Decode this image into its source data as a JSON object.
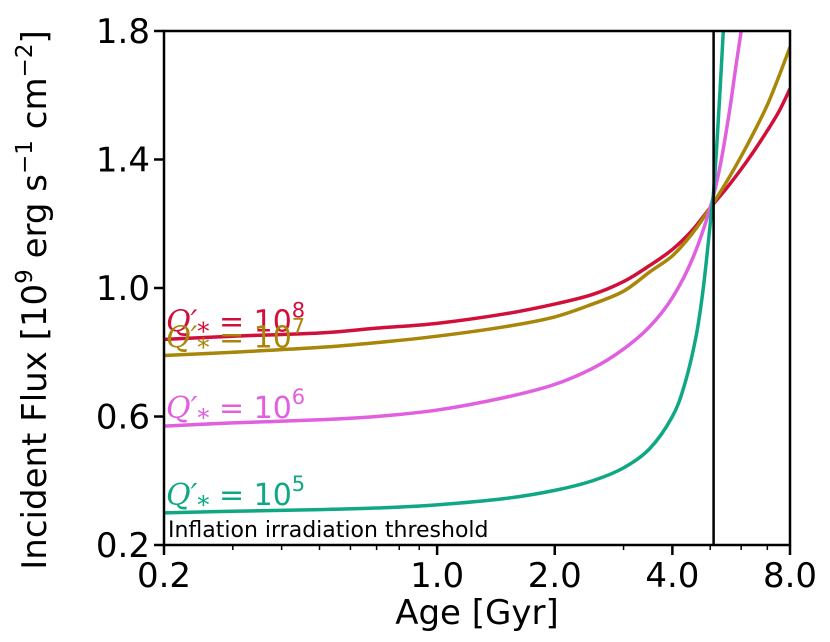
{
  "chart_data": {
    "type": "line",
    "title": "",
    "xlabel": "Age [Gyr]",
    "ylabel": "Incident Flux [10^9 erg s^-1 cm^-2]",
    "ylabel_parts": {
      "pre": "Incident Flux [10",
      "exp1": "9",
      "units1": " erg s",
      "exp2": "−1",
      "units2": " cm",
      "exp3": "−2",
      "post": "]"
    },
    "xscale": "log",
    "xlim": [
      0.2,
      8.0
    ],
    "ylim": [
      0.2,
      1.8
    ],
    "xticks": [
      {
        "value": 0.2,
        "label": "0.2"
      },
      {
        "value": 1.0,
        "label": "1.0"
      },
      {
        "value": 2.0,
        "label": "2.0"
      },
      {
        "value": 4.0,
        "label": "4.0"
      },
      {
        "value": 8.0,
        "label": "8.0"
      }
    ],
    "yticks": [
      {
        "value": 0.2,
        "label": "0.2"
      },
      {
        "value": 0.6,
        "label": "0.6"
      },
      {
        "value": 1.0,
        "label": "1.0"
      },
      {
        "value": 1.4,
        "label": "1.4"
      },
      {
        "value": 1.8,
        "label": "1.8"
      }
    ],
    "vline": {
      "x": 5.1,
      "label": "Inflation irradiation threshold"
    },
    "series": [
      {
        "name": "Q'* = 10^8",
        "label_base": "Q′",
        "label_sub": "*",
        "label_eq": " = 10",
        "label_exp": "8",
        "color": "#d0103a",
        "x": [
          0.2,
          0.3,
          0.5,
          0.7,
          1.0,
          1.5,
          2.0,
          2.5,
          3.0,
          3.5,
          4.0,
          4.5,
          5.0,
          5.5,
          6.0,
          6.5,
          7.0,
          7.5,
          8.0
        ],
        "y": [
          0.84,
          0.85,
          0.86,
          0.875,
          0.89,
          0.92,
          0.95,
          0.98,
          1.02,
          1.07,
          1.12,
          1.18,
          1.25,
          1.31,
          1.37,
          1.43,
          1.49,
          1.55,
          1.62
        ]
      },
      {
        "name": "Q'* = 10^7",
        "label_base": "Q′",
        "label_sub": "*",
        "label_eq": " = 10",
        "label_exp": "7",
        "color": "#a8860a",
        "x": [
          0.2,
          0.3,
          0.5,
          0.7,
          1.0,
          1.5,
          2.0,
          2.5,
          3.0,
          3.5,
          4.0,
          4.5,
          5.0,
          5.5,
          6.0,
          6.5,
          7.0,
          7.5,
          8.0
        ],
        "y": [
          0.79,
          0.8,
          0.815,
          0.83,
          0.85,
          0.88,
          0.91,
          0.95,
          0.99,
          1.05,
          1.1,
          1.17,
          1.25,
          1.33,
          1.41,
          1.49,
          1.57,
          1.66,
          1.75
        ]
      },
      {
        "name": "Q'* = 10^6",
        "label_base": "Q′",
        "label_sub": "*",
        "label_eq": " = 10",
        "label_exp": "6",
        "color": "#e060e0",
        "x": [
          0.2,
          0.3,
          0.5,
          0.7,
          1.0,
          1.5,
          2.0,
          2.5,
          3.0,
          3.5,
          4.0,
          4.5,
          5.0,
          5.3,
          5.6,
          5.8,
          6.0
        ],
        "y": [
          0.57,
          0.58,
          0.59,
          0.6,
          0.62,
          0.66,
          0.7,
          0.75,
          0.81,
          0.88,
          0.97,
          1.09,
          1.25,
          1.38,
          1.55,
          1.68,
          1.8
        ]
      },
      {
        "name": "Q'* = 10^5",
        "label_base": "Q′",
        "label_sub": "*",
        "label_eq": " = 10",
        "label_exp": "5",
        "color": "#10a884",
        "x": [
          0.2,
          0.3,
          0.5,
          0.7,
          1.0,
          1.5,
          2.0,
          2.5,
          3.0,
          3.5,
          4.0,
          4.3,
          4.6,
          4.8,
          5.0,
          5.1,
          5.2,
          5.3,
          5.4
        ],
        "y": [
          0.3,
          0.305,
          0.31,
          0.315,
          0.325,
          0.345,
          0.37,
          0.4,
          0.44,
          0.5,
          0.6,
          0.7,
          0.85,
          1.0,
          1.2,
          1.3,
          1.45,
          1.62,
          1.8
        ]
      }
    ]
  }
}
